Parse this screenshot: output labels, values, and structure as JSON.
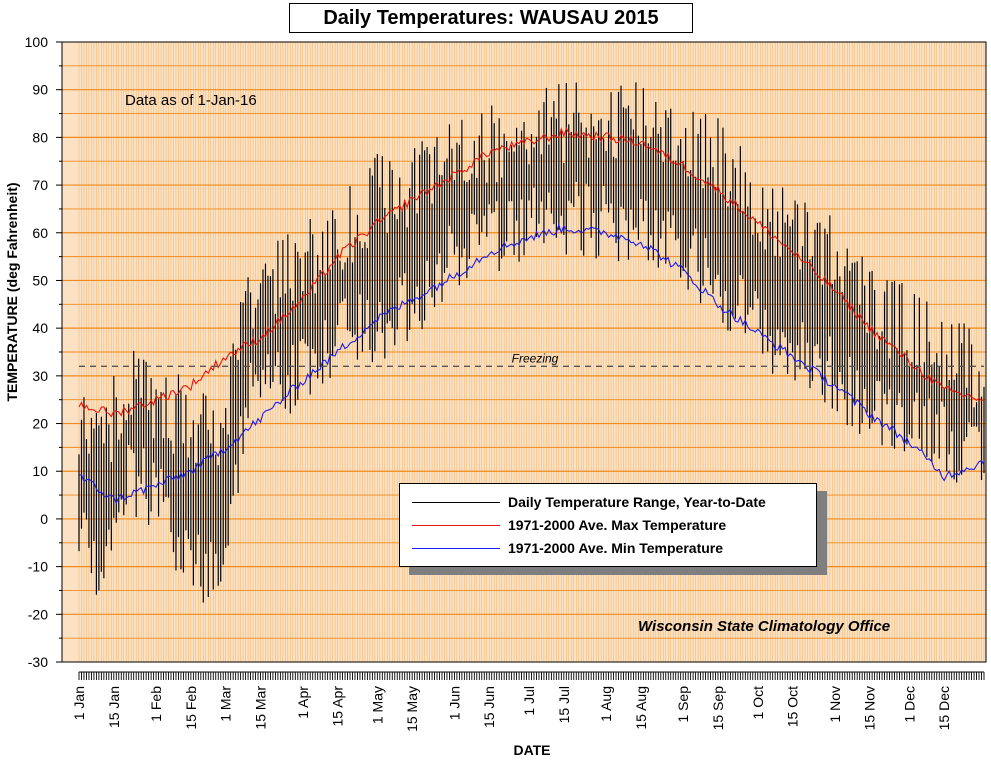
{
  "chart_data": {
    "type": "line",
    "title": "Daily Temperatures: WAUSAU 2015",
    "note": "Data as of 1-Jan-16",
    "credit": "Wisconsin State Climatology Office",
    "xlabel": "DATE",
    "ylabel": "TEMPERATURE (deg Fahrenheit)",
    "xlim": [
      "2015-01-01",
      "2015-12-31"
    ],
    "ylim": [
      -30,
      100
    ],
    "yticks": [
      100,
      90,
      80,
      70,
      60,
      50,
      40,
      30,
      20,
      10,
      0,
      -10,
      -20,
      -30
    ],
    "xticks": [
      {
        "date": "2015-01-01",
        "label": "1 Jan"
      },
      {
        "date": "2015-01-15",
        "label": "15 Jan"
      },
      {
        "date": "2015-02-01",
        "label": "1 Feb"
      },
      {
        "date": "2015-02-15",
        "label": "15 Feb"
      },
      {
        "date": "2015-03-01",
        "label": "1 Mar"
      },
      {
        "date": "2015-03-15",
        "label": "15 Mar"
      },
      {
        "date": "2015-04-01",
        "label": "1 Apr"
      },
      {
        "date": "2015-04-15",
        "label": "15 Apr"
      },
      {
        "date": "2015-05-01",
        "label": "1 May"
      },
      {
        "date": "2015-05-15",
        "label": "15 May"
      },
      {
        "date": "2015-06-01",
        "label": "1 Jun"
      },
      {
        "date": "2015-06-15",
        "label": "15 Jun"
      },
      {
        "date": "2015-07-01",
        "label": "1 Jul"
      },
      {
        "date": "2015-07-15",
        "label": "15 Jul"
      },
      {
        "date": "2015-08-01",
        "label": "1 Aug"
      },
      {
        "date": "2015-08-15",
        "label": "15 Aug"
      },
      {
        "date": "2015-09-01",
        "label": "1 Sep"
      },
      {
        "date": "2015-09-15",
        "label": "15 Sep"
      },
      {
        "date": "2015-10-01",
        "label": "1 Oct"
      },
      {
        "date": "2015-10-15",
        "label": "15 Oct"
      },
      {
        "date": "2015-11-01",
        "label": "1 Nov"
      },
      {
        "date": "2015-11-15",
        "label": "15 Nov"
      },
      {
        "date": "2015-12-01",
        "label": "1 Dec"
      },
      {
        "date": "2015-12-15",
        "label": "15 Dec"
      }
    ],
    "grid": true,
    "background_color": "#fbe2c4",
    "grid_color": "#ef8a1c",
    "freezing": {
      "value": 32,
      "label": "Freezing",
      "color": "#555555"
    },
    "legend_position": "lower-center",
    "series": [
      {
        "name": "Daily Temperature Range, Year-to-Date",
        "kind": "range",
        "color": "#000000",
        "anchor_dates": [
          "2015-01-01",
          "2015-01-10",
          "2015-01-20",
          "2015-02-01",
          "2015-02-10",
          "2015-02-20",
          "2015-03-01",
          "2015-03-10",
          "2015-03-20",
          "2015-04-01",
          "2015-04-15",
          "2015-05-01",
          "2015-05-15",
          "2015-06-01",
          "2015-06-15",
          "2015-07-01",
          "2015-07-15",
          "2015-08-01",
          "2015-08-15",
          "2015-09-01",
          "2015-09-15",
          "2015-10-01",
          "2015-10-15",
          "2015-11-01",
          "2015-11-15",
          "2015-12-01",
          "2015-12-15",
          "2015-12-31"
        ],
        "anchor_highs": [
          20,
          15,
          28,
          25,
          22,
          18,
          20,
          45,
          50,
          55,
          58,
          68,
          70,
          75,
          78,
          82,
          83,
          84,
          85,
          80,
          76,
          65,
          60,
          55,
          45,
          40,
          35,
          30
        ],
        "anchor_lows": [
          -5,
          -10,
          10,
          5,
          -5,
          -12,
          -5,
          25,
          28,
          30,
          38,
          40,
          45,
          55,
          58,
          62,
          63,
          62,
          60,
          55,
          50,
          40,
          35,
          30,
          22,
          22,
          18,
          10
        ]
      },
      {
        "name": "1971-2000 Ave. Max Temperature",
        "kind": "line",
        "color": "#e8140a",
        "anchor_dates": [
          "2015-01-01",
          "2015-01-15",
          "2015-02-01",
          "2015-02-15",
          "2015-03-01",
          "2015-03-15",
          "2015-04-01",
          "2015-04-15",
          "2015-05-01",
          "2015-05-15",
          "2015-06-01",
          "2015-06-15",
          "2015-07-01",
          "2015-07-15",
          "2015-08-01",
          "2015-08-15",
          "2015-09-01",
          "2015-09-15",
          "2015-10-01",
          "2015-10-15",
          "2015-11-01",
          "2015-11-15",
          "2015-12-01",
          "2015-12-15",
          "2015-12-31"
        ],
        "anchor_values": [
          24,
          22,
          25,
          28,
          34,
          38,
          46,
          55,
          62,
          67,
          72,
          77,
          79,
          81,
          80,
          79,
          74,
          69,
          62,
          56,
          48,
          40,
          33,
          27,
          25
        ]
      },
      {
        "name": "1971-2000 Ave. Min Temperature",
        "kind": "line",
        "color": "#1c1cef",
        "anchor_dates": [
          "2015-01-01",
          "2015-01-15",
          "2015-02-01",
          "2015-02-15",
          "2015-03-01",
          "2015-03-15",
          "2015-04-01",
          "2015-04-15",
          "2015-05-01",
          "2015-05-15",
          "2015-06-01",
          "2015-06-15",
          "2015-07-01",
          "2015-07-15",
          "2015-08-01",
          "2015-08-15",
          "2015-09-01",
          "2015-09-15",
          "2015-10-01",
          "2015-10-15",
          "2015-11-01",
          "2015-11-15",
          "2015-12-01",
          "2015-12-15",
          "2015-12-31"
        ],
        "anchor_values": [
          9,
          4,
          7,
          10,
          15,
          21,
          29,
          35,
          42,
          46,
          51,
          56,
          59,
          61,
          60,
          58,
          52,
          45,
          39,
          34,
          28,
          22,
          16,
          9,
          12
        ]
      }
    ]
  }
}
